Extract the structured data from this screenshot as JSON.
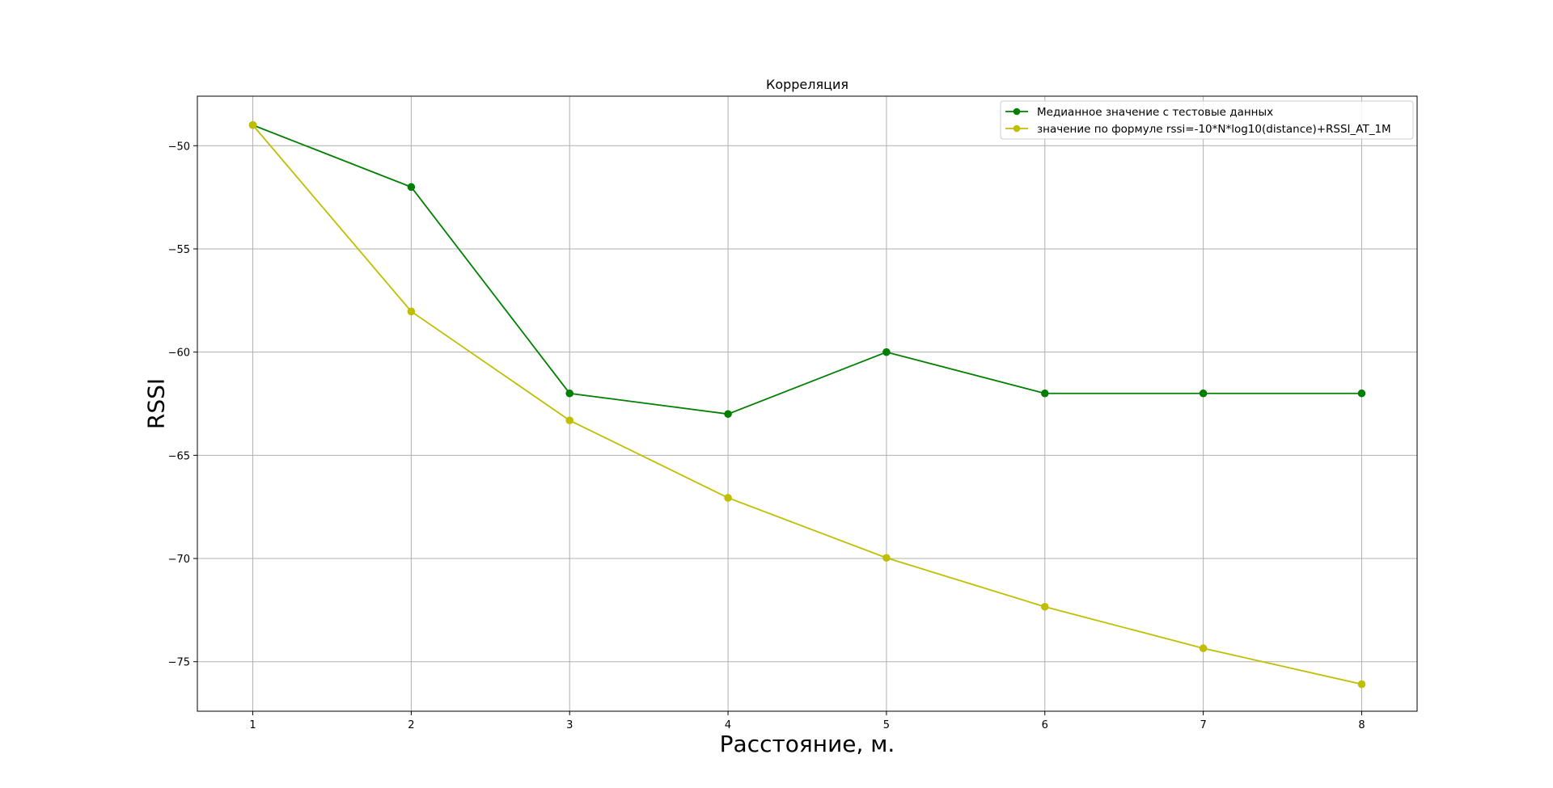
{
  "chart_data": {
    "type": "line",
    "title": "Корреляция",
    "xlabel": "Расстояние, м.",
    "ylabel": "RSSI",
    "x": [
      1,
      2,
      3,
      4,
      5,
      6,
      7,
      8
    ],
    "xlim": [
      0.65,
      8.35
    ],
    "ylim": [
      -77.4,
      -47.6
    ],
    "xticks": [
      1,
      2,
      3,
      4,
      5,
      6,
      7,
      8
    ],
    "yticks": [
      -50,
      -55,
      -60,
      -65,
      -70,
      -75
    ],
    "xtick_labels": [
      "1",
      "2",
      "3",
      "4",
      "5",
      "6",
      "7",
      "8"
    ],
    "ytick_labels": [
      "−50",
      "−55",
      "−60",
      "−65",
      "−70",
      "−75"
    ],
    "grid": true,
    "legend_position": "top-right",
    "series": [
      {
        "name": "Медианное значение с тестовые данных",
        "color": "#008000",
        "marker": "circle",
        "values": [
          -49,
          -52,
          -62,
          -63,
          -60,
          -62,
          -62,
          -62
        ]
      },
      {
        "name": "значение по формуле rssi=-10*N*log10(distance)+RSSI_AT_1M",
        "color": "#bfbf00",
        "marker": "circle",
        "values": [
          -49,
          -58.03,
          -63.31,
          -67.06,
          -69.97,
          -72.34,
          -74.35,
          -76.09
        ]
      }
    ]
  }
}
